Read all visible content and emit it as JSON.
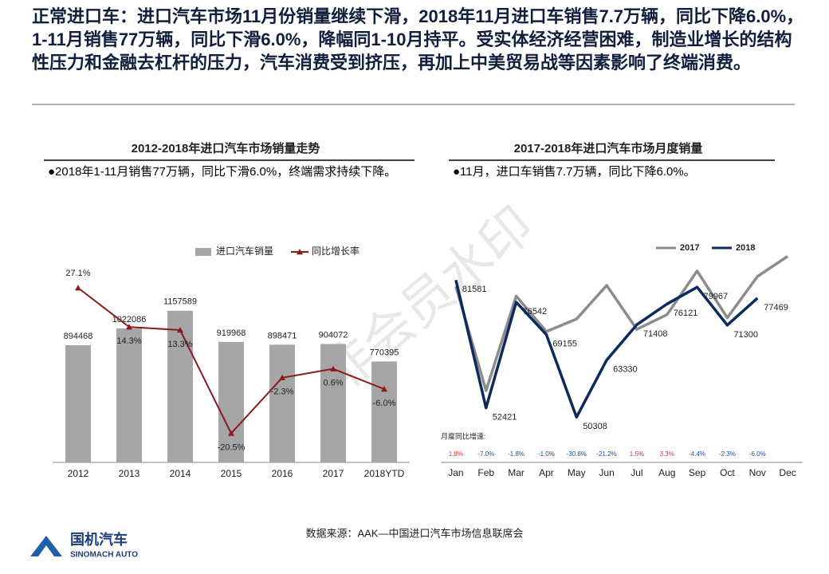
{
  "headline": "正常进口车：进口汽车市场11月份销量继续下滑，2018年11月进口车销售7.7万辆，同比下降6.0%，1-11月销售77万辆，同比下滑6.0%，降幅同1-10月持平。受实体经济经营困难，制造业增长的结构性压力和金融去杠杆的压力，汽车消费受到挤压，再加上中美贸易战等因素影响了终端消费。",
  "watermark": "非会员水印",
  "source": "数据来源：AAK—中国进口汽车市场信息联席会",
  "logo": {
    "name": "国机汽车",
    "name_en": "SINOMACH AUTO"
  },
  "chart_data": [
    {
      "type": "bar",
      "title": "2012-2018年进口汽车市场销量走势",
      "subtitle": "●2018年1-11月销售77万辆，同比下滑6.0%，终端需求持续下降。",
      "categories": [
        "2012",
        "2013",
        "2014",
        "2015",
        "2016",
        "2017",
        "2018YTD"
      ],
      "ylim": [
        0,
        1400000
      ],
      "y2lim": [
        -30,
        30
      ],
      "series": [
        {
          "name": "进口汽车销量",
          "type": "bar",
          "color": "#a6a6a6",
          "values": [
            894468,
            1022086,
            1157589,
            919968,
            898471,
            904072,
            770395
          ]
        },
        {
          "name": "同比增长率",
          "type": "line",
          "axis": "y2",
          "color": "#8b1a1a",
          "values": [
            27.1,
            14.3,
            13.3,
            -20.5,
            -2.3,
            0.6,
            -6.0
          ],
          "value_labels": [
            "27.1%",
            "14.3%",
            "13.3%",
            "-20.5%",
            "-2.3%",
            "0.6%",
            "-6.0%"
          ]
        }
      ]
    },
    {
      "type": "line",
      "title": "2017-2018年进口汽车市场月度销量",
      "subtitle": "●11月，进口车销售7.7万辆，同比下降6.0%。",
      "categories": [
        "Jan",
        "Feb",
        "Mar",
        "Apr",
        "May",
        "Jun",
        "Jul",
        "Aug",
        "Sep",
        "Oct",
        "Nov",
        "Dec"
      ],
      "ylim": [
        40000,
        90000
      ],
      "series": [
        {
          "name": "2017",
          "color": "#8c8c8c",
          "values": [
            80140,
            56370,
            77940,
            69850,
            72700,
            80370,
            70350,
            73690,
            83650,
            72980,
            82410,
            87000
          ]
        },
        {
          "name": "2018",
          "color": "#0d2a5e",
          "labeled": true,
          "values": [
            81581,
            52421,
            76542,
            69155,
            50308,
            63330,
            71408,
            76121,
            79967,
            71300,
            77469,
            null
          ]
        }
      ],
      "growth": {
        "label": "月度同比增速:",
        "positive_color": "#e03030",
        "negative_color": "#1f4e9e",
        "values": [
          1.8,
          -7.0,
          -1.8,
          -1.0,
          -30.8,
          -21.2,
          1.5,
          3.3,
          -4.4,
          -2.3,
          -6.0,
          null
        ],
        "value_labels": [
          "1.8%",
          "-7.0%",
          "-1.8%",
          "-1.0%",
          "-30.8%",
          "-21.2%",
          "1.5%",
          "3.3%",
          "-4.4%",
          "-2.3%",
          "-6.0%",
          null
        ]
      }
    }
  ]
}
